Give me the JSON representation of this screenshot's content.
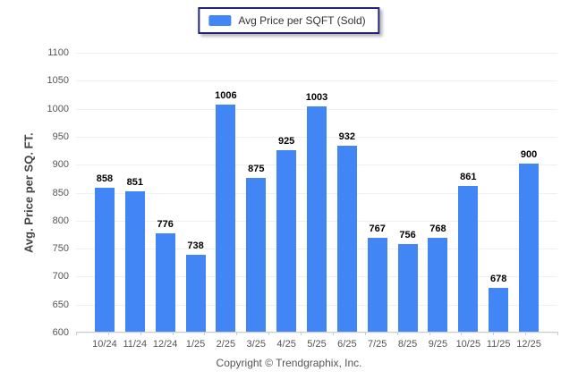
{
  "legend": {
    "label": "Avg Price per SQFT (Sold)"
  },
  "footer": {
    "copyright": "Copyright © Trendgraphix, Inc."
  },
  "chart_data": {
    "type": "bar",
    "title": "",
    "xlabel": "",
    "ylabel": "Avg. Price per SQ. FT.",
    "categories": [
      "10/24",
      "11/24",
      "12/24",
      "1/25",
      "2/25",
      "3/25",
      "4/25",
      "5/25",
      "6/25",
      "7/25",
      "8/25",
      "9/25",
      "10/25",
      "11/25",
      "12/25"
    ],
    "series": [
      {
        "name": "Avg Price per SQFT (Sold)",
        "values": [
          858,
          851,
          776,
          738,
          1006,
          875,
          925,
          1003,
          932,
          767,
          756,
          768,
          861,
          678,
          900
        ]
      }
    ],
    "ylim": [
      600,
      1100
    ],
    "yticks": [
      1100,
      1050,
      1000,
      950,
      900,
      850,
      800,
      750,
      700,
      650,
      600
    ],
    "grid": "horizontal",
    "legend_position": "top-center",
    "value_labels": true,
    "bar_color": "#4285f4",
    "gridline_color": "#f0f0f0",
    "axis_line_color": "#cccccc",
    "tick_color": "#b9d1ef",
    "label_color": "#555555"
  }
}
